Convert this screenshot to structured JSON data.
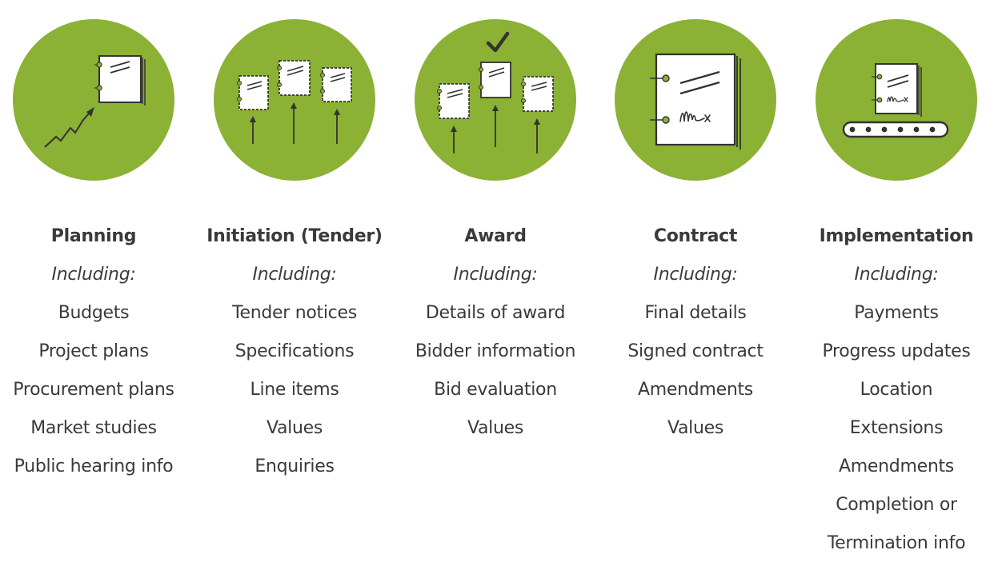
{
  "colors": {
    "circle": "#8bb135",
    "stroke": "#333333",
    "paper": "#ffffff",
    "text": "#3a3a3a"
  },
  "stages": [
    {
      "title": "Planning",
      "including": "Including:",
      "items": [
        "Budgets",
        "Project plans",
        "Procurement plans",
        "Market studies",
        "Public hearing info"
      ],
      "icon": "document-rising-chart-icon"
    },
    {
      "title": "Initiation (Tender)",
      "including": "Including:",
      "items": [
        "Tender notices",
        "Specifications",
        "Line items",
        "Values",
        "Enquiries"
      ],
      "icon": "three-documents-arrows-icon"
    },
    {
      "title": "Award",
      "including": "Including:",
      "items": [
        "Details of award",
        "Bidder information",
        "Bid evaluation",
        "Values"
      ],
      "icon": "selected-document-check-icon"
    },
    {
      "title": "Contract",
      "including": "Including:",
      "items": [
        "Final details",
        "Signed contract",
        "Amendments",
        "Values"
      ],
      "icon": "signed-contract-icon"
    },
    {
      "title": "Implementation",
      "including": "Including:",
      "items": [
        "Payments",
        "Progress updates",
        "Location",
        "Extensions",
        "Amendments",
        "Completion or",
        "Termination info"
      ],
      "icon": "document-conveyor-belt-icon"
    }
  ]
}
